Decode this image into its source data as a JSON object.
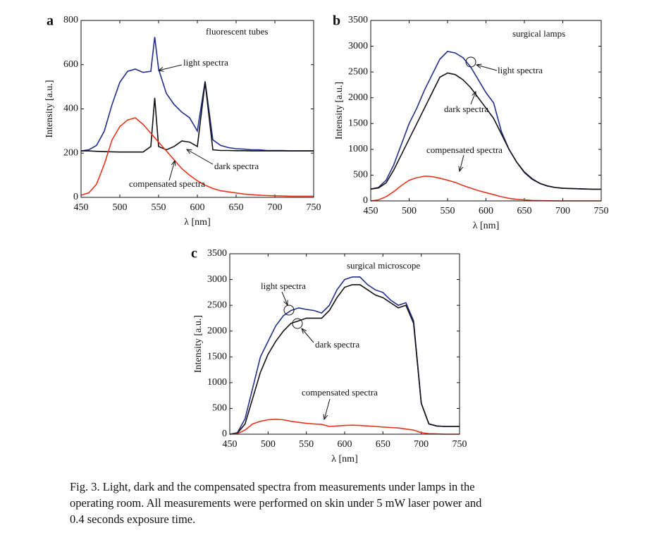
{
  "chart_data": [
    {
      "type": "line",
      "label": "a",
      "xlabel": "λ [nm]",
      "ylabel": "Intensity [a.u.]",
      "annotations": [
        "fluorescent tubes",
        "light spectra",
        "dark spectra",
        "compensated spectra"
      ],
      "x": [
        450,
        460,
        470,
        480,
        490,
        500,
        510,
        520,
        530,
        540,
        545,
        550,
        560,
        570,
        580,
        590,
        600,
        610,
        620,
        630,
        640,
        650,
        660,
        670,
        680,
        690,
        700,
        710,
        720,
        730,
        740,
        750
      ],
      "series": [
        {
          "color": "#1f2f8c",
          "values": [
            210,
            215,
            235,
            300,
            420,
            520,
            570,
            580,
            565,
            570,
            725,
            580,
            470,
            420,
            385,
            360,
            300,
            525,
            260,
            235,
            225,
            220,
            218,
            215,
            215,
            212,
            212,
            212,
            210,
            210,
            210,
            210
          ]
        },
        {
          "color": "#111111",
          "values": [
            210,
            210,
            208,
            207,
            206,
            205,
            205,
            205,
            205,
            230,
            450,
            230,
            215,
            230,
            255,
            250,
            230,
            520,
            215,
            212,
            212,
            211,
            211,
            210,
            210,
            210,
            210,
            210,
            210,
            210,
            210,
            210
          ]
        },
        {
          "color": "#e8341c",
          "values": [
            10,
            20,
            60,
            150,
            260,
            320,
            350,
            360,
            330,
            290,
            270,
            250,
            210,
            170,
            130,
            100,
            75,
            55,
            40,
            30,
            25,
            20,
            15,
            12,
            10,
            8,
            7,
            6,
            5,
            5,
            5,
            5
          ]
        }
      ],
      "xlim": [
        450,
        750
      ],
      "xticks": [
        450,
        500,
        550,
        600,
        650,
        700,
        750
      ],
      "ylim": [
        0,
        800
      ],
      "yticks": [
        0,
        200,
        400,
        600,
        800
      ]
    },
    {
      "type": "line",
      "label": "b",
      "xlabel": "λ [nm]",
      "ylabel": "Intensity [a.u.]",
      "annotations": [
        "surgical lamps",
        "light spectra",
        "dark spectra",
        "compensated spectra"
      ],
      "x": [
        450,
        460,
        470,
        480,
        490,
        500,
        510,
        520,
        530,
        540,
        550,
        560,
        570,
        580,
        590,
        600,
        610,
        620,
        630,
        640,
        650,
        660,
        670,
        680,
        690,
        700,
        710,
        720,
        730,
        740,
        750
      ],
      "series": [
        {
          "color": "#1f2f8c",
          "values": [
            230,
            260,
            400,
            700,
            1100,
            1500,
            1800,
            2150,
            2450,
            2750,
            2900,
            2870,
            2780,
            2600,
            2350,
            2100,
            1900,
            1350,
            1000,
            750,
            550,
            420,
            340,
            290,
            260,
            245,
            240,
            235,
            230,
            225,
            225
          ]
        },
        {
          "color": "#111111",
          "values": [
            230,
            250,
            350,
            600,
            900,
            1200,
            1500,
            1800,
            2100,
            2400,
            2480,
            2450,
            2350,
            2200,
            2000,
            1800,
            1600,
            1300,
            1000,
            750,
            560,
            430,
            340,
            290,
            260,
            245,
            240,
            235,
            230,
            225,
            225
          ]
        },
        {
          "color": "#e8341c",
          "values": [
            0,
            20,
            80,
            180,
            300,
            400,
            450,
            480,
            470,
            440,
            400,
            360,
            300,
            250,
            200,
            160,
            120,
            80,
            50,
            30,
            20,
            10,
            5,
            3,
            2,
            0,
            0,
            0,
            0,
            0,
            0
          ]
        }
      ],
      "xlim": [
        450,
        750
      ],
      "xticks": [
        450,
        500,
        550,
        600,
        650,
        700,
        750
      ],
      "ylim": [
        0,
        3500
      ],
      "yticks": [
        0,
        500,
        1000,
        1500,
        2000,
        2500,
        3000,
        3500
      ]
    },
    {
      "type": "line",
      "label": "c",
      "xlabel": "λ [nm]",
      "ylabel": "Intensity [a.u.]",
      "annotations": [
        "surgical microscope",
        "light spectra",
        "dark spectra",
        "compensated spectra"
      ],
      "x": [
        450,
        460,
        470,
        480,
        490,
        500,
        510,
        520,
        530,
        540,
        550,
        560,
        570,
        580,
        590,
        600,
        610,
        620,
        630,
        640,
        650,
        660,
        670,
        680,
        690,
        700,
        710,
        720,
        730,
        740,
        750
      ],
      "series": [
        {
          "color": "#1f2f8c",
          "values": [
            0,
            30,
            300,
            900,
            1500,
            1800,
            2100,
            2300,
            2400,
            2450,
            2420,
            2400,
            2350,
            2500,
            2800,
            3000,
            3050,
            3050,
            2900,
            2800,
            2750,
            2600,
            2500,
            2550,
            2200,
            600,
            200,
            160,
            150,
            150,
            150
          ]
        },
        {
          "color": "#111111",
          "values": [
            0,
            20,
            200,
            700,
            1200,
            1550,
            1800,
            2000,
            2150,
            2200,
            2250,
            2250,
            2250,
            2400,
            2650,
            2850,
            2900,
            2900,
            2800,
            2700,
            2650,
            2550,
            2450,
            2500,
            2150,
            600,
            200,
            160,
            150,
            150,
            150
          ]
        },
        {
          "color": "#e8341c",
          "values": [
            0,
            10,
            80,
            200,
            250,
            280,
            290,
            280,
            250,
            230,
            210,
            200,
            190,
            150,
            160,
            170,
            175,
            170,
            160,
            150,
            140,
            130,
            120,
            100,
            80,
            30,
            10,
            5,
            0,
            0,
            0
          ]
        }
      ],
      "xlim": [
        450,
        750
      ],
      "xticks": [
        450,
        500,
        550,
        600,
        650,
        700,
        750
      ],
      "ylim": [
        0,
        3500
      ],
      "yticks": [
        0,
        500,
        1000,
        1500,
        2000,
        2500,
        3000,
        3500
      ]
    }
  ],
  "caption": [
    "Fig. 3. Light, dark and the compensated spectra from measurements under lamps in the",
    "operating room. All measurements were performed on skin under 5 mW laser power and",
    "0.4 seconds exposure time."
  ]
}
